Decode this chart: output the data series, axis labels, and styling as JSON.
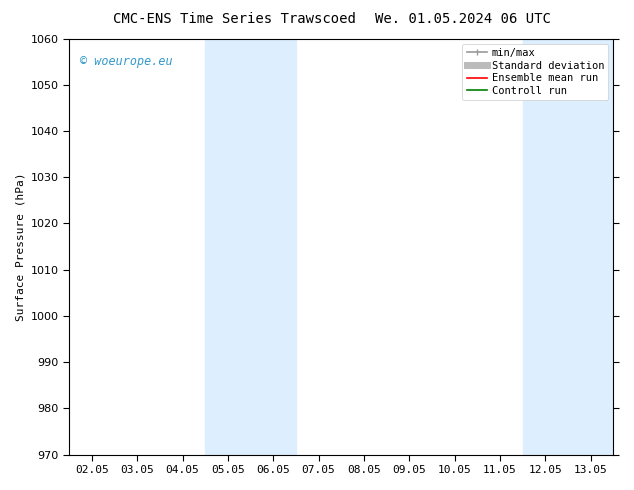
{
  "title_left": "CMC-ENS Time Series Trawscoed",
  "title_right": "We. 01.05.2024 06 UTC",
  "ylabel": "Surface Pressure (hPa)",
  "ylim": [
    970,
    1060
  ],
  "yticks": [
    970,
    980,
    990,
    1000,
    1010,
    1020,
    1030,
    1040,
    1050,
    1060
  ],
  "xtick_labels": [
    "02.05",
    "03.05",
    "04.05",
    "05.05",
    "06.05",
    "07.05",
    "08.05",
    "09.05",
    "10.05",
    "11.05",
    "12.05",
    "13.05"
  ],
  "xtick_positions": [
    0,
    1,
    2,
    3,
    4,
    5,
    6,
    7,
    8,
    9,
    10,
    11
  ],
  "xlim": [
    -0.5,
    11.5
  ],
  "shaded_bands": [
    {
      "xmin": 2.5,
      "xmax": 4.5,
      "color": "#ddeeff"
    },
    {
      "xmin": 9.5,
      "xmax": 11.5,
      "color": "#ddeeff"
    }
  ],
  "legend_entries": [
    {
      "label": "min/max",
      "color": "#999999",
      "lw": 1.2
    },
    {
      "label": "Standard deviation",
      "color": "#bbbbbb",
      "lw": 5
    },
    {
      "label": "Ensemble mean run",
      "color": "#ff0000",
      "lw": 1.2
    },
    {
      "label": "Controll run",
      "color": "#008000",
      "lw": 1.2
    }
  ],
  "watermark": "© woeurope.eu",
  "watermark_color": "#3399cc",
  "background_color": "#ffffff",
  "title_fontsize": 10,
  "axis_fontsize": 8,
  "tick_fontsize": 8,
  "legend_fontsize": 7.5
}
